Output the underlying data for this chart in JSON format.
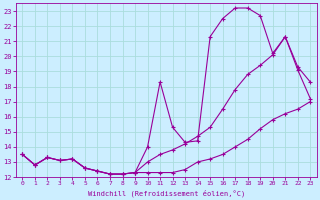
{
  "xlabel": "Windchill (Refroidissement éolien,°C)",
  "bg_color": "#cceeff",
  "grid_color": "#aadddd",
  "line_color": "#990099",
  "xlim": [
    -0.5,
    23.5
  ],
  "ylim": [
    12,
    23.5
  ],
  "xticks": [
    0,
    1,
    2,
    3,
    4,
    5,
    6,
    7,
    8,
    9,
    10,
    11,
    12,
    13,
    14,
    15,
    16,
    17,
    18,
    19,
    20,
    21,
    22,
    23
  ],
  "yticks": [
    12,
    13,
    14,
    15,
    16,
    17,
    18,
    19,
    20,
    21,
    22,
    23
  ],
  "curve1_x": [
    0,
    1,
    2,
    3,
    4,
    5,
    6,
    7,
    8,
    9,
    10,
    11,
    12,
    13,
    14,
    15,
    16,
    17,
    18,
    19,
    20,
    21,
    22,
    23
  ],
  "curve1_y": [
    13.5,
    12.8,
    13.3,
    13.1,
    13.2,
    12.6,
    12.4,
    12.2,
    12.2,
    12.3,
    12.3,
    12.3,
    12.3,
    12.5,
    13.0,
    13.2,
    13.5,
    14.0,
    14.5,
    15.2,
    15.8,
    16.2,
    16.5,
    17.0
  ],
  "curve2_x": [
    0,
    1,
    2,
    3,
    4,
    5,
    6,
    7,
    8,
    9,
    10,
    11,
    12,
    13,
    14,
    15,
    16,
    17,
    18,
    19,
    20,
    21,
    22,
    23
  ],
  "curve2_y": [
    13.5,
    12.8,
    13.3,
    13.1,
    13.2,
    12.6,
    12.4,
    12.2,
    12.2,
    12.3,
    14.0,
    18.3,
    15.3,
    14.3,
    14.4,
    21.3,
    22.5,
    23.2,
    23.2,
    22.7,
    20.2,
    21.3,
    19.3,
    18.3
  ],
  "curve3_x": [
    0,
    1,
    2,
    3,
    4,
    5,
    6,
    7,
    8,
    9,
    10,
    11,
    12,
    13,
    14,
    15,
    16,
    17,
    18,
    19,
    20,
    21,
    22,
    23
  ],
  "curve3_y": [
    13.5,
    12.8,
    13.3,
    13.1,
    13.2,
    12.6,
    12.4,
    12.2,
    12.2,
    12.3,
    13.0,
    13.5,
    13.8,
    14.2,
    14.7,
    15.3,
    16.5,
    17.8,
    18.8,
    19.4,
    20.1,
    21.3,
    19.1,
    17.2
  ]
}
